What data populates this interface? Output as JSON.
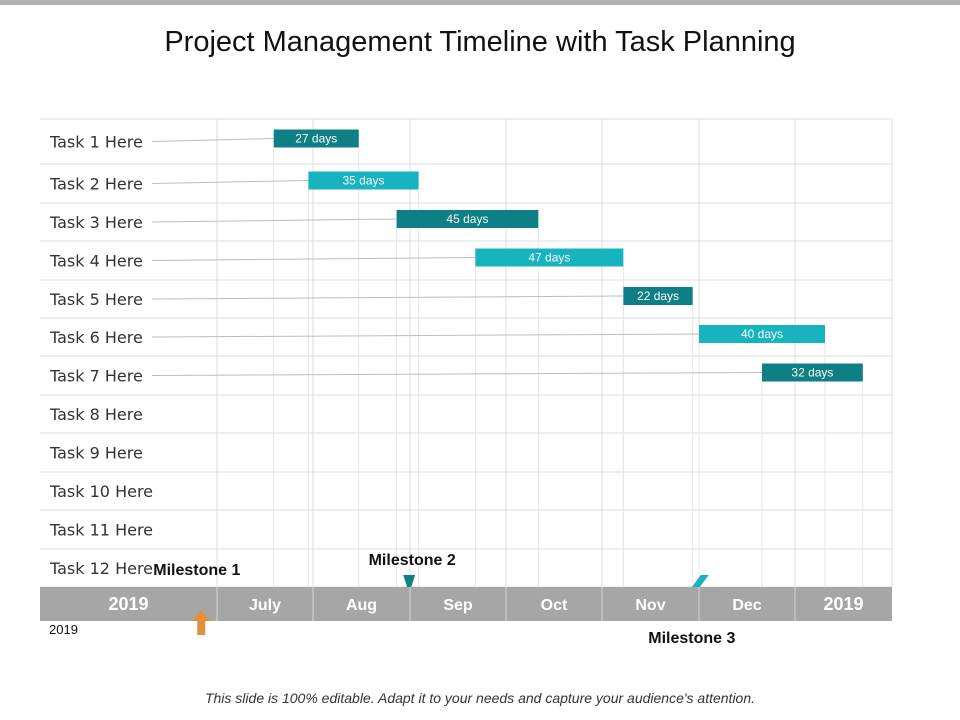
{
  "title": "Project Management Timeline with Task Planning",
  "footer": "This slide is 100% editable.  Adapt it to your needs and capture your audience's attention.",
  "colors": {
    "dark_teal": "#0f7f86",
    "light_teal": "#17b4c0",
    "grid": "#dcdcdc",
    "axis_bar": "#a6a6a6",
    "milestone1": "#e0923a"
  },
  "chart_data": {
    "type": "bar",
    "title": "Project Management Timeline with Task Planning",
    "xlabel": "",
    "ylabel": "",
    "grid": true,
    "legend": "none",
    "axis_labels": [
      "2019",
      "July",
      "Aug",
      "Sep",
      "Oct",
      "Nov",
      "Dec",
      "2019"
    ],
    "year_note": "2019",
    "categories": [
      "Task 1 Here",
      "Task 2 Here",
      "Task 3 Here",
      "Task 4 Here",
      "Task 5 Here",
      "Task 6 Here",
      "Task 7 Here",
      "Task 8 Here",
      "Task 9 Here",
      "Task 10 Here",
      "Task 11 Here",
      "Task 12 Here"
    ],
    "tasks": [
      {
        "start": "2019-07-19",
        "end": "2019-08-15",
        "days": 27,
        "label": "27 days",
        "shade": "dark"
      },
      {
        "start": "2019-07-30",
        "end": "2019-09-03",
        "days": 35,
        "label": "35 days",
        "shade": "light"
      },
      {
        "start": "2019-08-27",
        "end": "2019-10-11",
        "days": 45,
        "label": "45 days",
        "shade": "dark"
      },
      {
        "start": "2019-09-21",
        "end": "2019-11-07",
        "days": 47,
        "label": "47 days",
        "shade": "light"
      },
      {
        "start": "2019-11-07",
        "end": "2019-11-29",
        "days": 22,
        "label": "22 days",
        "shade": "dark"
      },
      {
        "start": "2019-12-01",
        "end": "2020-01-10",
        "days": 40,
        "label": "40 days",
        "shade": "light"
      },
      {
        "start": "2019-12-21",
        "end": "2020-01-22",
        "days": 32,
        "label": "32 days",
        "shade": "dark"
      }
    ],
    "milestones": [
      {
        "label": "Milestone 1",
        "date": "2019-06-26"
      },
      {
        "label": "Milestone 2",
        "date": "2019-08-31"
      },
      {
        "label": "Milestone 3",
        "date": "2019-11-30"
      }
    ]
  }
}
